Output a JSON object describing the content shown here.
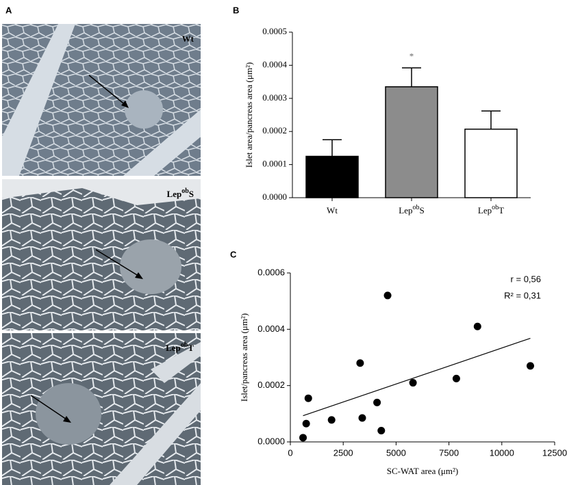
{
  "figure": {
    "panels": [
      "A",
      "B",
      "C"
    ],
    "micrographs": [
      [
        "Wt"
      ],
      [
        "Lep",
        "ob",
        "S"
      ],
      [
        "Lep",
        "ob",
        "T"
      ]
    ]
  },
  "chart_data": [
    {
      "type": "bar",
      "categories": [
        [
          "Wt"
        ],
        [
          "Lep",
          "ob",
          "S"
        ],
        [
          "Lep",
          "ob",
          "T"
        ]
      ],
      "values": [
        0.000125,
        0.000335,
        0.000207
      ],
      "errors": [
        5e-05,
        5.7e-05,
        5.5e-05
      ],
      "colors": [
        "#000000",
        "#8c8c8c",
        "#ffffff"
      ],
      "annotations": [
        {
          "category": 1,
          "text": "*"
        }
      ],
      "ylabel": "Islet area/pancreas area (μm²)",
      "ylim": [
        0,
        0.0005
      ],
      "yticks": [
        {
          "value": 0,
          "label": "0.0000"
        },
        {
          "value": 0.0001,
          "label": "0.0001"
        },
        {
          "value": 0.0002,
          "label": "0.0002"
        },
        {
          "value": 0.0003,
          "label": "0.0003"
        },
        {
          "value": 0.0004,
          "label": "0.0004"
        },
        {
          "value": 0.0005,
          "label": "0.0005"
        }
      ]
    },
    {
      "type": "scatter",
      "x": [
        600,
        750,
        850,
        1950,
        3300,
        3400,
        4100,
        4300,
        4600,
        5800,
        7850,
        8850,
        11350
      ],
      "values": [
        1.5e-05,
        6.5e-05,
        0.000155,
        7.8e-05,
        0.00028,
        8.5e-05,
        0.00014,
        4e-05,
        0.00052,
        0.00021,
        0.000225,
        0.00041,
        0.00027
      ],
      "color": "#000000",
      "fit": {
        "x": [
          600,
          11350
        ],
        "y": [
          9.3e-05,
          0.000368
        ]
      },
      "annotations": [
        "r = 0,56",
        "R² = 0,31"
      ],
      "xlabel": "SC-WAT area (μm²)",
      "ylabel": "Islet/pancreas area (μm²)",
      "xlim": [
        0,
        12500
      ],
      "ylim": [
        0,
        0.0006
      ],
      "xticks": [
        0,
        2500,
        5000,
        7500,
        10000,
        12500
      ],
      "yticks": [
        {
          "value": 0,
          "label": "0.0000"
        },
        {
          "value": 0.0002,
          "label": "0.0002"
        },
        {
          "value": 0.0004,
          "label": "0.0004"
        },
        {
          "value": 0.0006,
          "label": "0.0006"
        }
      ]
    }
  ]
}
